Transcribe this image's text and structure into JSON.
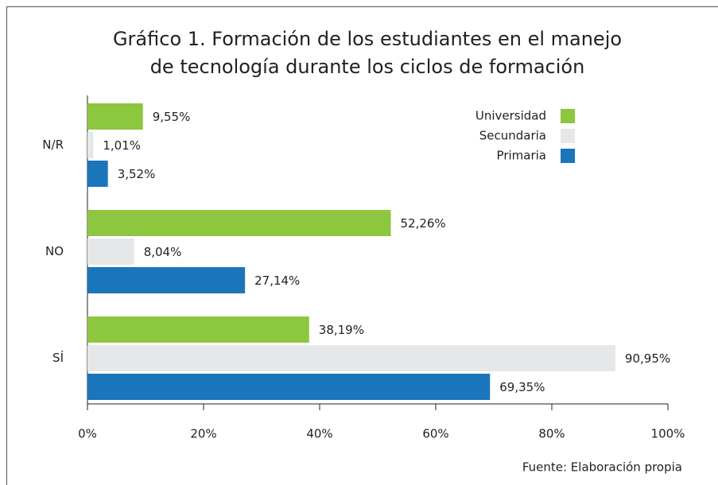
{
  "chart_data": {
    "type": "hbar",
    "title": [
      "Gráfico 1. Formación de los estudiantes en el manejo",
      "de tecnología durante los ciclos de formación"
    ],
    "categories": [
      "N/R",
      "NO",
      "SÍ"
    ],
    "series": [
      {
        "name": "Universidad",
        "color": "#8dc63f",
        "values": [
          9.55,
          52.26,
          38.19
        ],
        "value_labels": [
          "9,55%",
          "52,26%",
          "38,19%"
        ]
      },
      {
        "name": "Secundaria",
        "color": "#e6e7e8",
        "values": [
          1.01,
          8.04,
          90.95
        ],
        "value_labels": [
          "1,01%",
          "8,04%",
          "90,95%"
        ]
      },
      {
        "name": "Primaria",
        "color": "#1a75bb",
        "values": [
          3.52,
          27.14,
          69.35
        ],
        "value_labels": [
          "3,52%",
          "27,14%",
          "69,35%"
        ]
      }
    ],
    "xlim": [
      0,
      100
    ],
    "xticks": [
      {
        "value": 0,
        "label": "0%"
      },
      {
        "value": 20,
        "label": "20%"
      },
      {
        "value": 40,
        "label": "40%"
      },
      {
        "value": 60,
        "label": "60%"
      },
      {
        "value": 80,
        "label": "80%"
      },
      {
        "value": 100,
        "label": "100%"
      }
    ],
    "legend": "top-right",
    "source": "Fuente: Elaboración propia"
  }
}
